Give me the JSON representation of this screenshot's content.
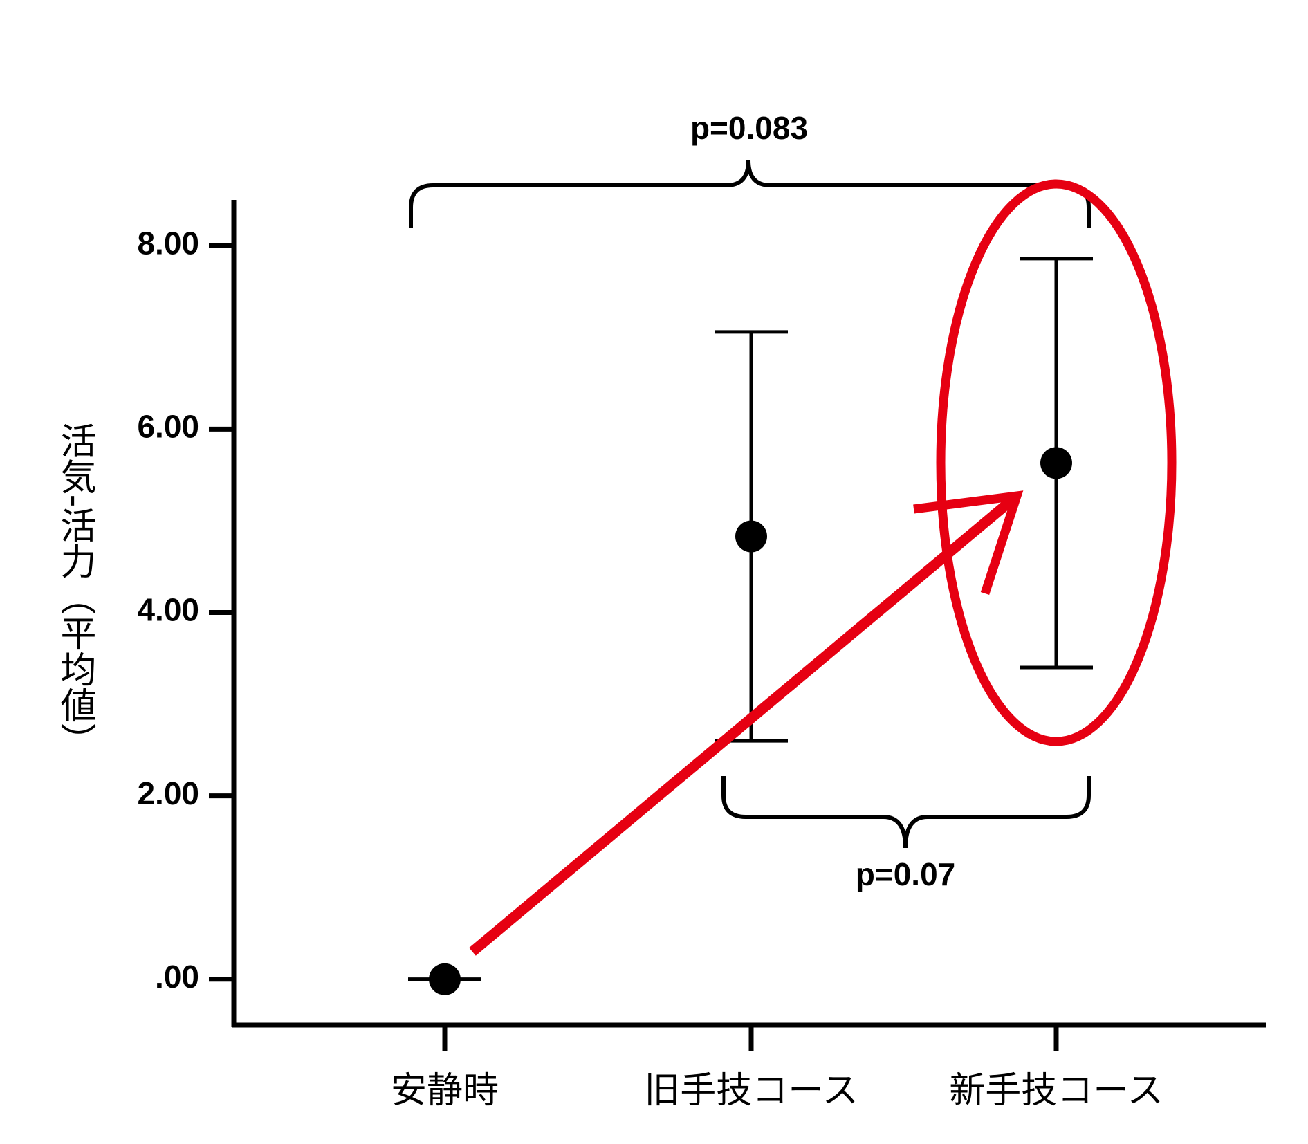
{
  "chart_data": {
    "type": "errorbar",
    "y_label": "活気-活力（平均値）",
    "categories": [
      "安静時",
      "旧手技コース",
      "新手技コース"
    ],
    "series": [
      {
        "color": "#000000",
        "values": [
          0,
          4.83,
          5.63
        ],
        "errors": [
          0,
          2.23,
          2.23
        ]
      }
    ],
    "ylim": [
      -0.5,
      8.5
    ],
    "yticks": [
      {
        "value": 0,
        "label": ".00"
      },
      {
        "value": 2,
        "label": "2.00"
      },
      {
        "value": 4,
        "label": "4.00"
      },
      {
        "value": 6,
        "label": "6.00"
      },
      {
        "value": 8,
        "label": "8.00"
      }
    ],
    "annotations": [
      "p=0.083",
      "p=0.07"
    ]
  }
}
